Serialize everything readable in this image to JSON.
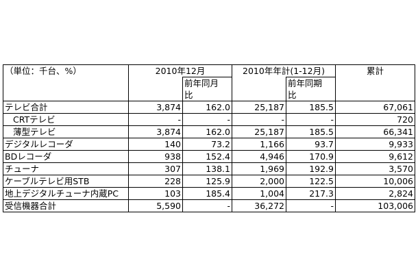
{
  "header": {
    "unit": "（単位：千台、%）",
    "period_month": "2010年12月",
    "period_year": "2010年年計(1-12月)",
    "cumulative": "累計",
    "yoy_month_line1": "前年同月",
    "yoy_month_line2": "比",
    "yoy_year_line1": "前年同期",
    "yoy_year_line2": "比"
  },
  "rows": [
    {
      "name": "テレビ合計",
      "indent": false,
      "month": "3,874",
      "month_yoy": "162.0",
      "year": "25,187",
      "year_yoy": "185.5",
      "cumulative": "67,061"
    },
    {
      "name": "CRTテレビ",
      "indent": true,
      "month": "-",
      "month_yoy": "-",
      "year": "-",
      "year_yoy": "-",
      "cumulative": "720"
    },
    {
      "name": "薄型テレビ",
      "indent": true,
      "month": "3,874",
      "month_yoy": "162.0",
      "year": "25,187",
      "year_yoy": "185.5",
      "cumulative": "66,341"
    },
    {
      "name": "デジタルレコーダ",
      "indent": false,
      "month": "140",
      "month_yoy": "73.2",
      "year": "1,166",
      "year_yoy": "93.7",
      "cumulative": "9,933"
    },
    {
      "name": "BDレコーダ",
      "indent": false,
      "month": "938",
      "month_yoy": "152.4",
      "year": "4,946",
      "year_yoy": "170.9",
      "cumulative": "9,612"
    },
    {
      "name": "チューナ",
      "indent": false,
      "month": "307",
      "month_yoy": "138.1",
      "year": "1,969",
      "year_yoy": "192.9",
      "cumulative": "3,570"
    },
    {
      "name": "ケーブルテレビ用STB",
      "indent": false,
      "month": "228",
      "month_yoy": "125.9",
      "year": "2,000",
      "year_yoy": "122.5",
      "cumulative": "10,006"
    },
    {
      "name": "地上デジタルチューナ内蔵PC",
      "indent": false,
      "month": "103",
      "month_yoy": "185.4",
      "year": "1,004",
      "year_yoy": "217.3",
      "cumulative": "2,824"
    },
    {
      "name": "受信機器合計",
      "indent": false,
      "month": "5,590",
      "month_yoy": "-",
      "year": "36,272",
      "year_yoy": "-",
      "cumulative": "103,006"
    }
  ]
}
